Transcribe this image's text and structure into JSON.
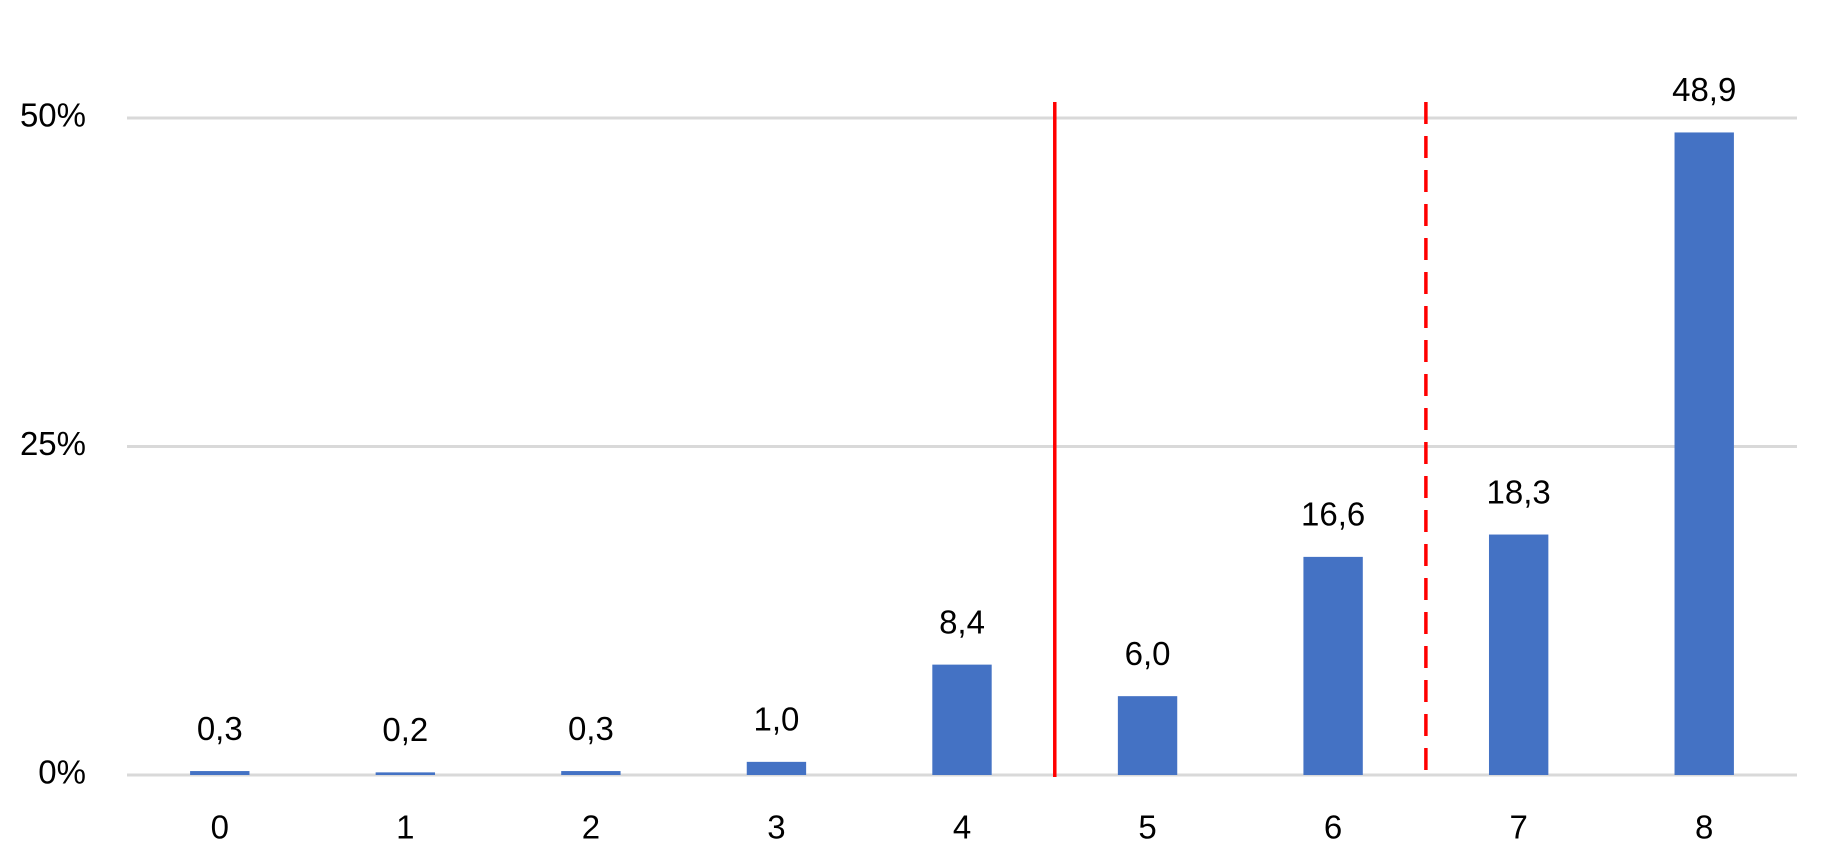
{
  "chart_data": {
    "type": "bar",
    "categories": [
      "0",
      "1",
      "2",
      "3",
      "4",
      "5",
      "6",
      "7",
      "8"
    ],
    "values": [
      0.3,
      0.2,
      0.3,
      1.0,
      8.4,
      6.0,
      16.6,
      18.3,
      48.9
    ],
    "value_labels": [
      "0,3",
      "0,2",
      "0,3",
      "1,0",
      "8,4",
      "6,0",
      "16,6",
      "18,3",
      "48,9"
    ],
    "color": "#4472c4",
    "ylim": [
      0,
      50
    ],
    "yticks": [
      {
        "value": 0,
        "label": "0%"
      },
      {
        "value": 25,
        "label": "25%"
      },
      {
        "value": 50,
        "label": "50%"
      }
    ],
    "grid": true
  }
}
